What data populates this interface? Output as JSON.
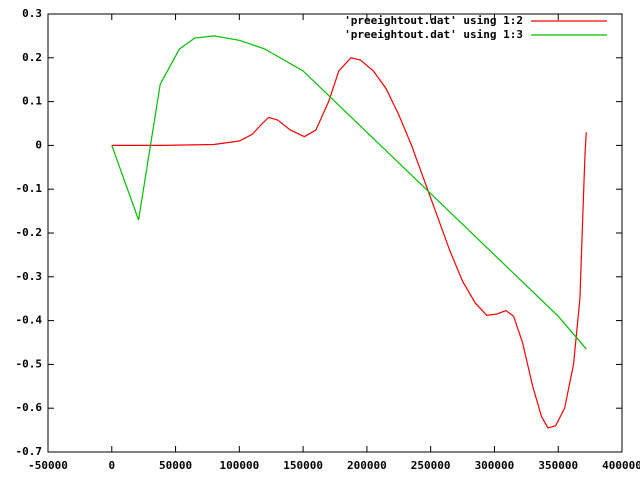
{
  "chart_data": {
    "type": "line",
    "xlim": [
      -50000,
      400000
    ],
    "xticks": [
      -50000,
      0,
      50000,
      100000,
      150000,
      200000,
      250000,
      300000,
      350000,
      400000
    ],
    "ylim": [
      -0.7,
      0.3
    ],
    "yticks": [
      0.3,
      0.2,
      0.1,
      0,
      -0.1,
      -0.2,
      -0.3,
      -0.4,
      -0.5,
      -0.6,
      -0.7
    ],
    "legend": "top-right",
    "series": [
      {
        "name": "'preeightout.dat' using 1:2",
        "color": "#ff0000",
        "x": [
          0,
          40000,
          80000,
          100000,
          110000,
          118000,
          123000,
          130000,
          140000,
          151000,
          160000,
          170000,
          178000,
          187500,
          195000,
          205000,
          215000,
          225000,
          235000,
          245000,
          255000,
          265000,
          275000,
          285000,
          294000,
          302000,
          309000,
          315000,
          322000,
          330000,
          337000,
          342000,
          348000,
          355000,
          362000,
          367000,
          370000,
          371000,
          372000
        ],
        "values": [
          0,
          0,
          0.002,
          0.01,
          0.025,
          0.05,
          0.064,
          0.058,
          0.035,
          0.02,
          0.035,
          0.1,
          0.17,
          0.2,
          0.195,
          0.17,
          0.13,
          0.07,
          0.0,
          -0.08,
          -0.16,
          -0.24,
          -0.31,
          -0.36,
          -0.388,
          -0.385,
          -0.377,
          -0.39,
          -0.45,
          -0.55,
          -0.62,
          -0.645,
          -0.64,
          -0.6,
          -0.5,
          -0.35,
          -0.1,
          -0.02,
          0.03
        ]
      },
      {
        "name": "'preeightout.dat' using 1:3",
        "color": "#00c000",
        "x": [
          0,
          21000,
          38000,
          53000,
          65000,
          80000,
          100000,
          120000,
          150000,
          200000,
          250000,
          300000,
          350000,
          372000
        ],
        "values": [
          0,
          -0.17,
          0.14,
          0.22,
          0.245,
          0.25,
          0.24,
          0.22,
          0.17,
          0.03,
          -0.11,
          -0.25,
          -0.39,
          -0.465
        ]
      }
    ]
  }
}
